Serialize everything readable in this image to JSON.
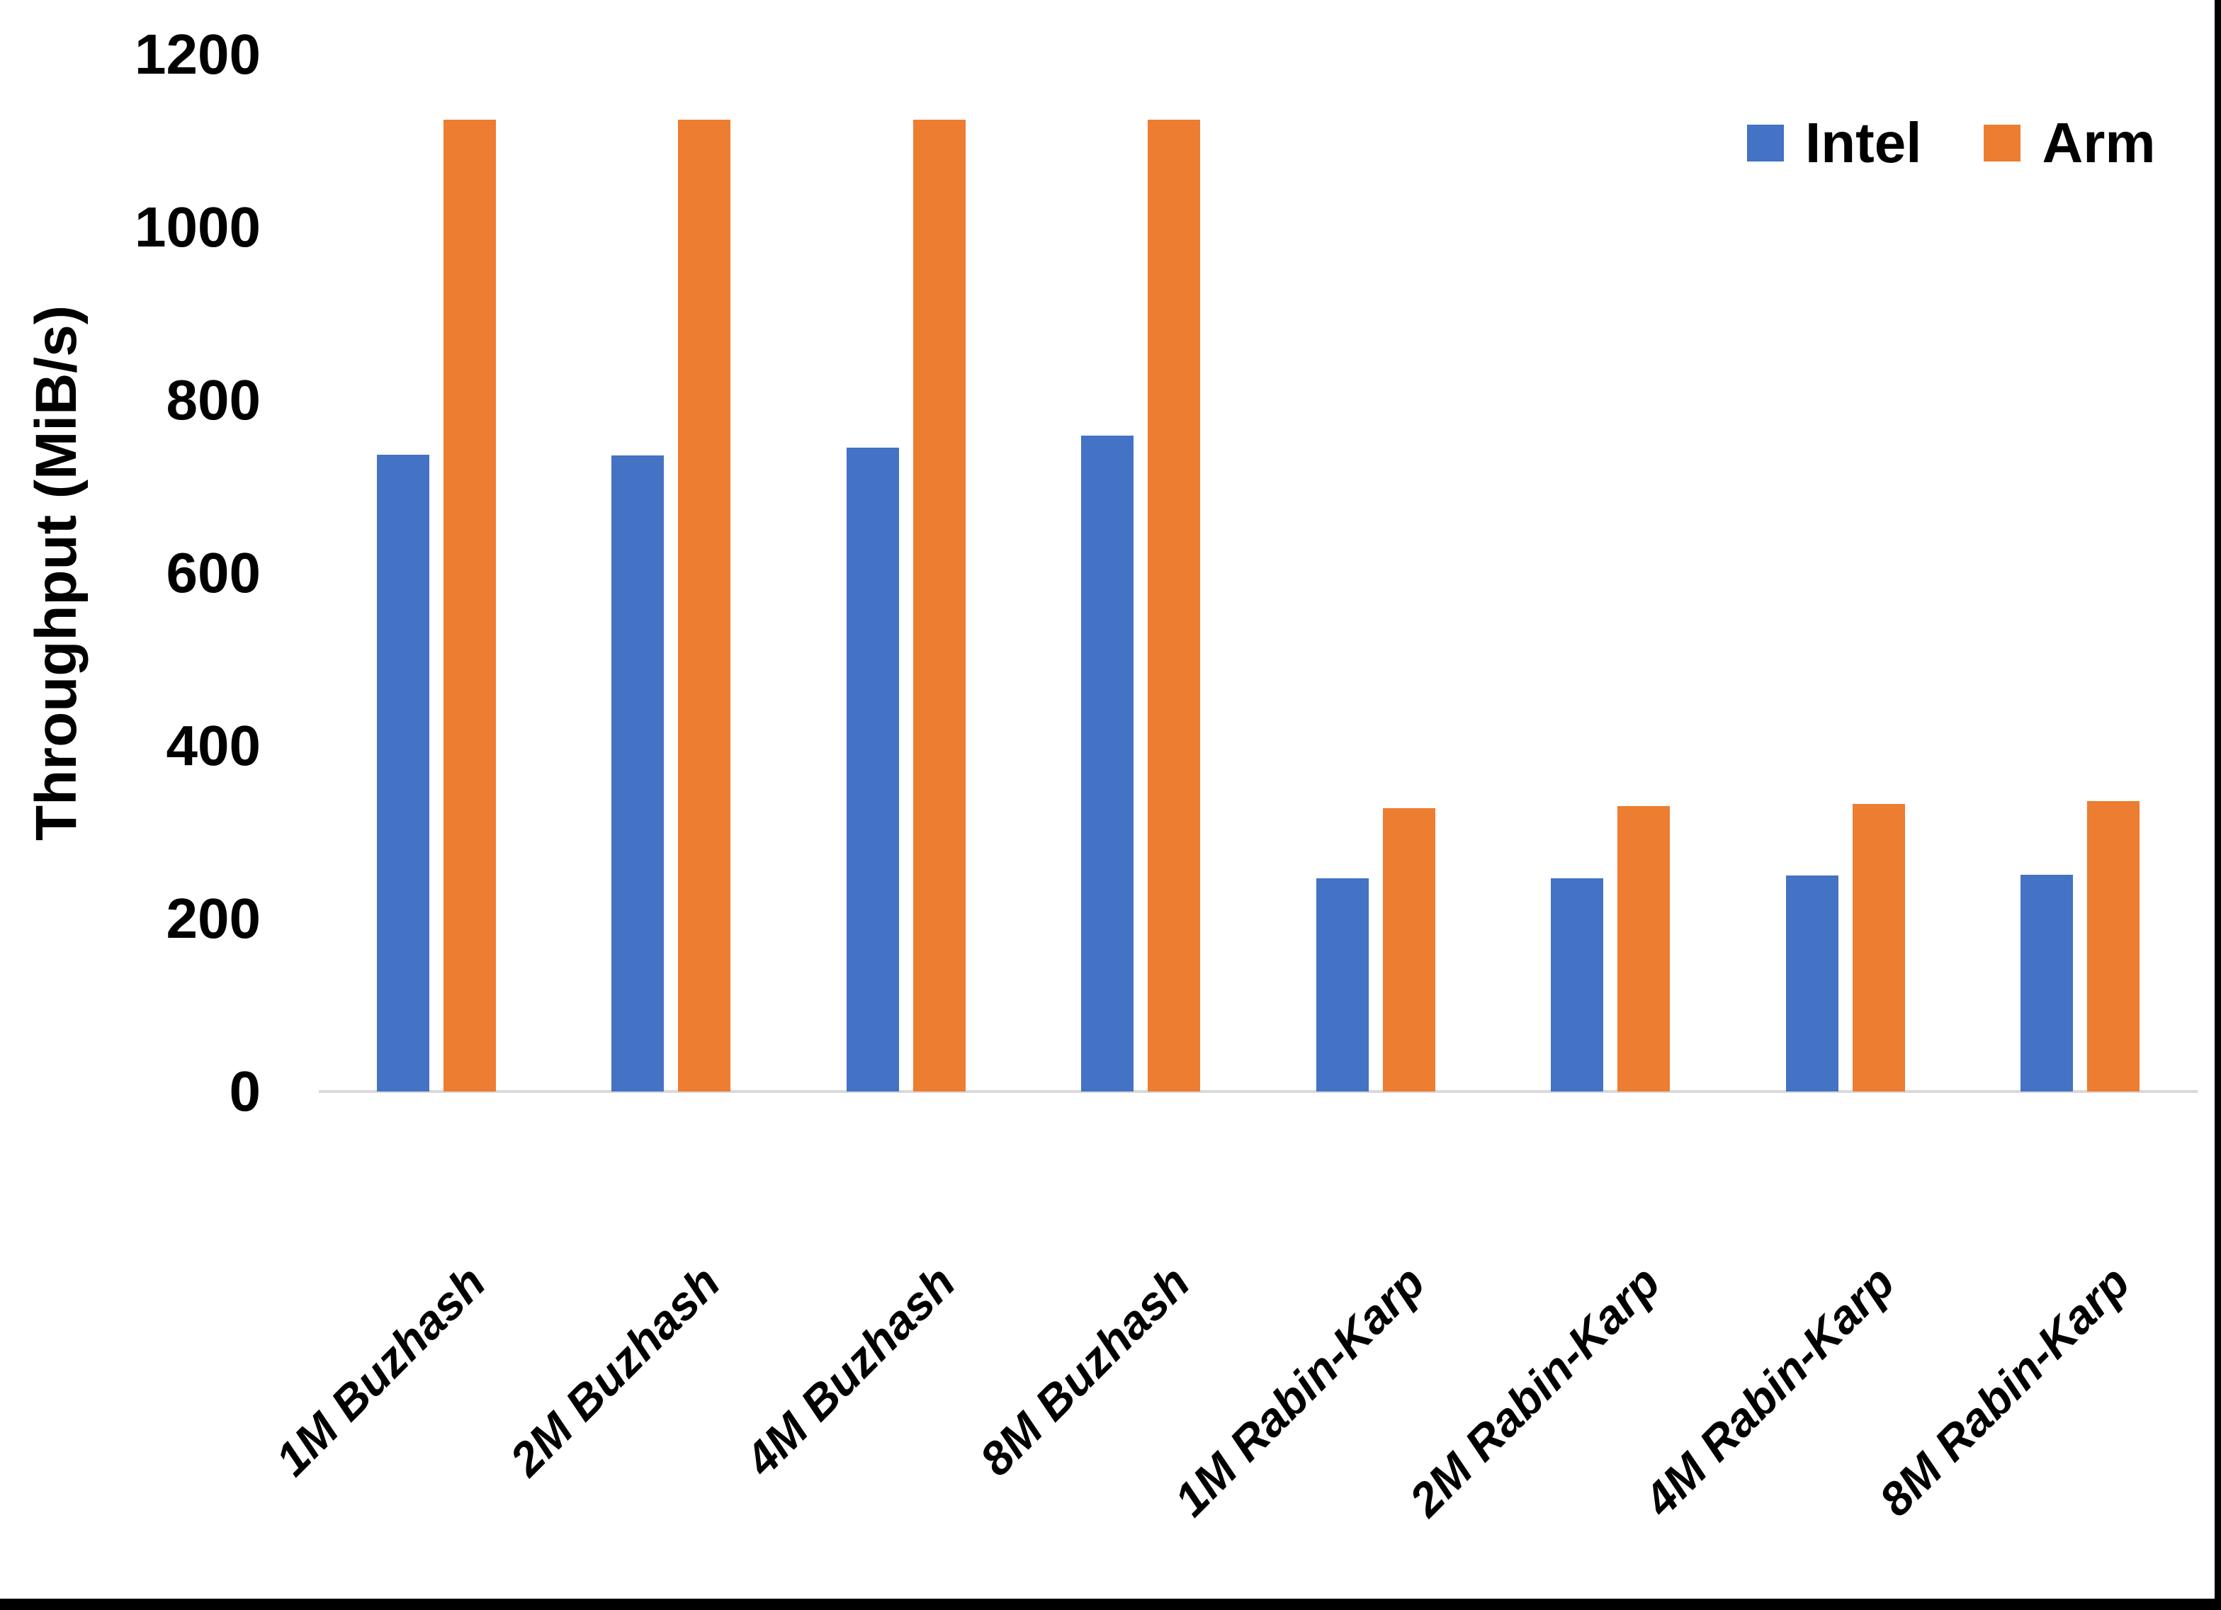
{
  "chart_data": {
    "type": "bar",
    "title": "",
    "xlabel": "",
    "ylabel": "Throughput (MiB/s)",
    "categories": [
      "1M Buzhash",
      "2M Buzhash",
      "4M Buzhash",
      "8M Buzhash",
      "1M Rabin-Karp",
      "2M Rabin-Karp",
      "4M Rabin-Karp",
      "8M Rabin-Karp"
    ],
    "series": [
      {
        "name": "Intel",
        "color": "#4472C4",
        "values": [
          737,
          736,
          745,
          759,
          247,
          247,
          250,
          251
        ]
      },
      {
        "name": "Arm",
        "color": "#ED7D31",
        "values": [
          1125,
          1125,
          1125,
          1125,
          328,
          330,
          333,
          336
        ]
      }
    ],
    "ylim": [
      0,
      1200
    ],
    "yticks": [
      0,
      200,
      400,
      600,
      800,
      1000,
      1200
    ],
    "grid": "off",
    "legend_position": "top-right",
    "axis_line_color": "#D9D9D9",
    "text_color": "#000000",
    "background_color": "#FFFFFF",
    "frame_edge_color": "#000000"
  }
}
